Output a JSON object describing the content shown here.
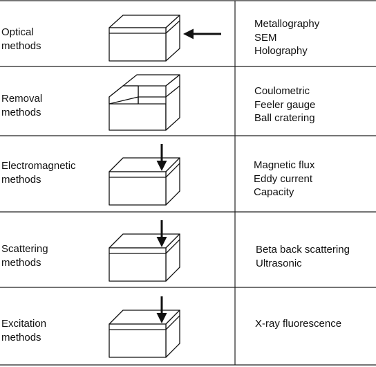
{
  "rows": [
    {
      "method": [
        "Optical",
        "methods"
      ],
      "icon": "layered-block-side-arrow-icon",
      "techniques": [
        "Metallography",
        "SEM",
        "Holography"
      ]
    },
    {
      "method": [
        "Removal",
        "methods"
      ],
      "icon": "block-with-removed-step-icon",
      "techniques": [
        "Coulometric",
        "Feeler gauge",
        "Ball cratering"
      ]
    },
    {
      "method": [
        "Electromagnetic",
        "methods"
      ],
      "icon": "layered-block-down-arrow-icon",
      "techniques": [
        "Magnetic flux",
        "Eddy current",
        "Capacity"
      ]
    },
    {
      "method": [
        "Scattering",
        "methods"
      ],
      "icon": "layered-block-down-arrow-icon",
      "techniques": [
        "Beta back scattering",
        "Ultrasonic"
      ]
    },
    {
      "method": [
        "Excitation",
        "methods"
      ],
      "icon": "layered-block-down-arrow-icon",
      "techniques": [
        "X-ray fluorescence"
      ]
    }
  ]
}
